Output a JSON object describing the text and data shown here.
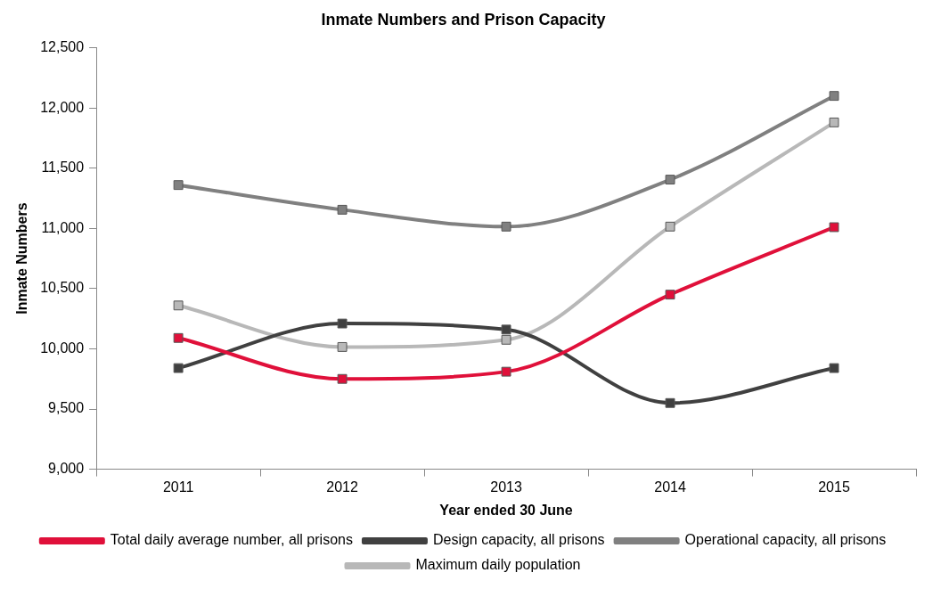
{
  "chart_data": {
    "type": "line",
    "title": "Inmate Numbers and Prison Capacity",
    "xlabel": "Year ended 30 June",
    "ylabel": "Inmate Numbers",
    "categories": [
      "2011",
      "2012",
      "2013",
      "2014",
      "2015"
    ],
    "series": [
      {
        "name": "Total daily average number, all prisons",
        "color": "#e0103a",
        "values": [
          10090,
          9750,
          9810,
          10450,
          11010
        ]
      },
      {
        "name": "Design capacity, all prisons",
        "color": "#404040",
        "values": [
          9840,
          10210,
          10160,
          9550,
          9840
        ]
      },
      {
        "name": "Operational capacity, all prisons",
        "color": "#808080",
        "values": [
          11360,
          11155,
          11015,
          11405,
          12100
        ]
      },
      {
        "name": "Maximum daily population",
        "color": "#b8b8b8",
        "values": [
          10360,
          10015,
          10075,
          11015,
          11880
        ]
      }
    ],
    "ylim": [
      9000,
      12500
    ],
    "yticks": [
      {
        "value": 9000,
        "label": "9,000"
      },
      {
        "value": 9500,
        "label": "9,500"
      },
      {
        "value": 10000,
        "label": "10,000"
      },
      {
        "value": 10500,
        "label": "10,500"
      },
      {
        "value": 11000,
        "label": "11,000"
      },
      {
        "value": 11500,
        "label": "11,500"
      },
      {
        "value": 12000,
        "label": "12,000"
      },
      {
        "value": 12500,
        "label": "12,500"
      }
    ],
    "grid": false,
    "legend": "bottom",
    "marker": "square",
    "line_style": "solid"
  }
}
